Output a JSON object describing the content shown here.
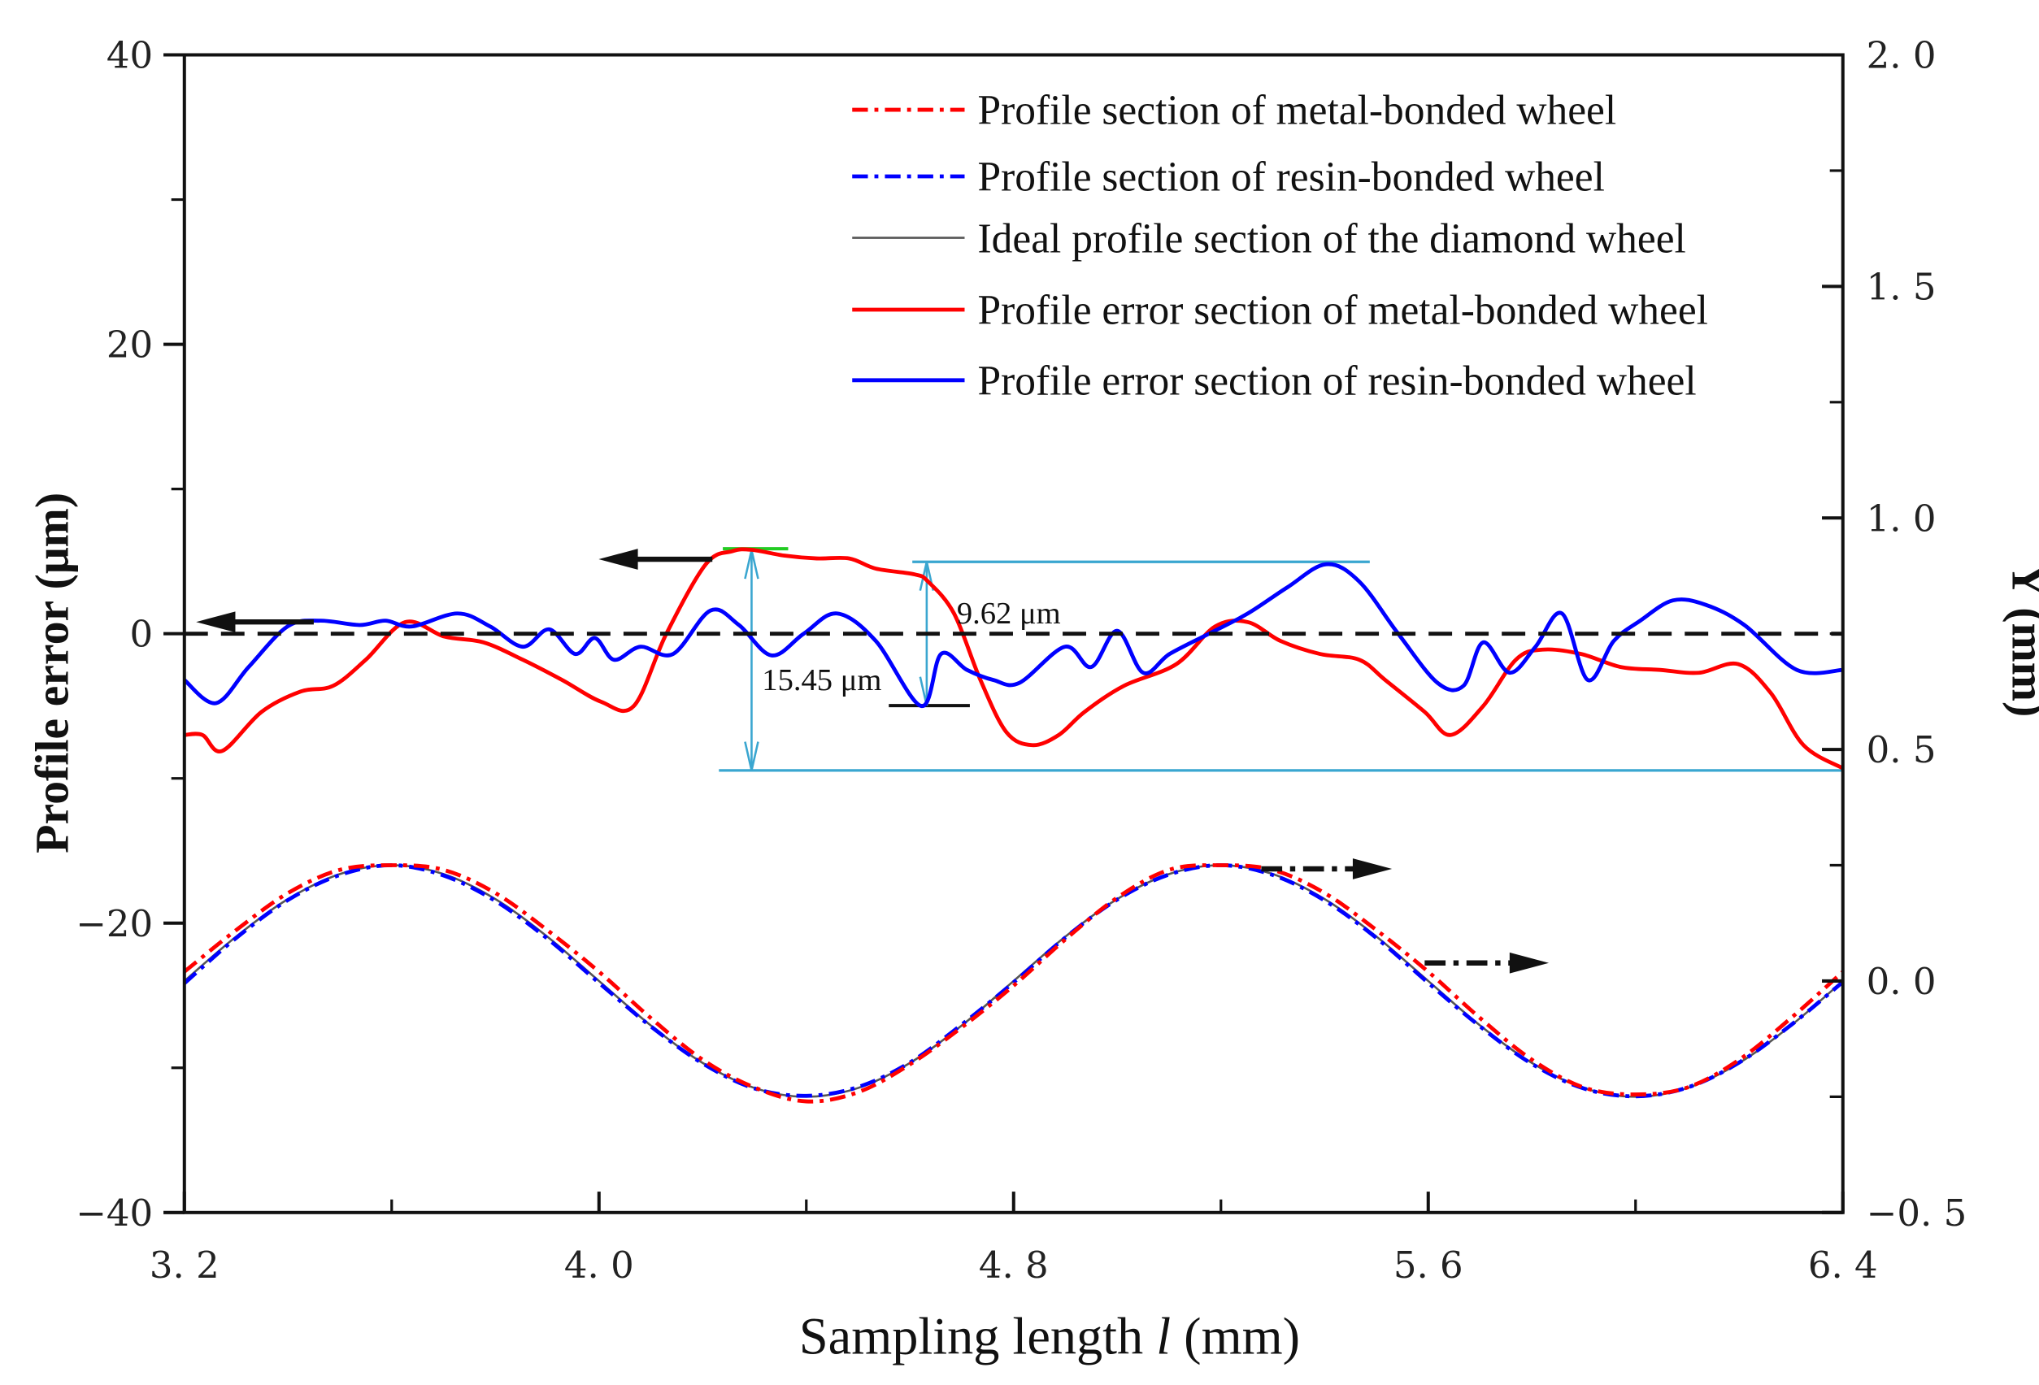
{
  "chart_data": {
    "type": "line",
    "title": "",
    "xlabel_main": "Sampling length ",
    "xlabel_italic": "l",
    "xlabel_unit": " (mm)",
    "ylabel": "Profile error (μm)",
    "y2label": "Y (mm)",
    "xlim": [
      3.2,
      6.4
    ],
    "ylim": [
      -40,
      40
    ],
    "y2lim": [
      -0.5,
      2.0
    ],
    "grid": false,
    "legend_position": "top-right",
    "x_ticks": [
      "3. 2",
      "4. 0",
      "4. 8",
      "5. 6",
      "6. 4"
    ],
    "x_tick_values": [
      3.2,
      4.0,
      4.8,
      5.6,
      6.4
    ],
    "y_ticks": [
      "40",
      "20",
      "0",
      "−20",
      "−40"
    ],
    "y_tick_values": [
      40,
      20,
      0,
      -20,
      -40
    ],
    "y2_ticks": [
      "2. 0",
      "1. 5",
      "1. 0",
      "0. 5",
      "0. 0",
      "−0. 5"
    ],
    "y2_tick_values": [
      2.0,
      1.5,
      1.0,
      0.5,
      0.0,
      -0.5
    ],
    "colors": {
      "metal": "#ff0000",
      "resin": "#0000ff",
      "ideal": "#555555",
      "annotation": "#3aa6d0",
      "peak_marker": "#22cc22"
    },
    "series": [
      {
        "name": "Profile section of metal-bonded wheel",
        "axis": "right",
        "style": "dashdot",
        "color": "#ff0000",
        "x": [
          3.2,
          3.3,
          3.4,
          3.5,
          3.6,
          3.7,
          3.8,
          3.9,
          4.0,
          4.1,
          4.2,
          4.3,
          4.4,
          4.5,
          4.6,
          4.7,
          4.8,
          4.9,
          5.0,
          5.1,
          5.2,
          5.3,
          5.4,
          5.5,
          5.6,
          5.7,
          5.8,
          5.9,
          6.0,
          6.1,
          6.2,
          6.3,
          6.4
        ],
        "y": [
          0.02,
          0.11,
          0.19,
          0.24,
          0.25,
          0.24,
          0.19,
          0.11,
          0.02,
          -0.08,
          -0.17,
          -0.23,
          -0.26,
          -0.24,
          -0.18,
          -0.1,
          -0.01,
          0.09,
          0.18,
          0.24,
          0.25,
          0.24,
          0.19,
          0.11,
          0.02,
          -0.08,
          -0.17,
          -0.23,
          -0.245,
          -0.23,
          -0.17,
          -0.08,
          0.02
        ]
      },
      {
        "name": "Profile section of resin-bonded wheel",
        "axis": "right",
        "style": "dashdot",
        "color": "#0000ff",
        "x": [
          3.2,
          3.3,
          3.4,
          3.5,
          3.6,
          3.7,
          3.8,
          3.9,
          4.0,
          4.1,
          4.2,
          4.3,
          4.4,
          4.5,
          4.6,
          4.7,
          4.8,
          4.9,
          5.0,
          5.1,
          5.2,
          5.3,
          5.4,
          5.5,
          5.6,
          5.7,
          5.8,
          5.9,
          6.0,
          6.1,
          6.2,
          6.3,
          6.4
        ],
        "y": [
          -0.005,
          0.093,
          0.175,
          0.229,
          0.25,
          0.228,
          0.173,
          0.092,
          -0.004,
          -0.098,
          -0.178,
          -0.232,
          -0.248,
          -0.229,
          -0.176,
          -0.094,
          -0.003,
          0.094,
          0.176,
          0.23,
          0.25,
          0.229,
          0.174,
          0.093,
          -0.004,
          -0.098,
          -0.179,
          -0.232,
          -0.249,
          -0.23,
          -0.176,
          -0.095,
          -0.002
        ]
      },
      {
        "name": "Ideal profile section of the diamond wheel",
        "axis": "right",
        "style": "solid-thin",
        "color": "#555555",
        "x": [
          3.2,
          3.3,
          3.4,
          3.5,
          3.6,
          3.7,
          3.8,
          3.9,
          4.0,
          4.1,
          4.2,
          4.3,
          4.4,
          4.5,
          4.6,
          4.7,
          4.8,
          4.9,
          5.0,
          5.1,
          5.2,
          5.3,
          5.4,
          5.5,
          5.6,
          5.7,
          5.8,
          5.9,
          6.0,
          6.1,
          6.2,
          6.3,
          6.4
        ],
        "y": [
          0,
          0.096,
          0.177,
          0.231,
          0.25,
          0.231,
          0.177,
          0.096,
          0,
          -0.096,
          -0.177,
          -0.231,
          -0.25,
          -0.231,
          -0.177,
          -0.096,
          0,
          0.096,
          0.177,
          0.231,
          0.25,
          0.231,
          0.177,
          0.096,
          0,
          -0.096,
          -0.177,
          -0.231,
          -0.25,
          -0.231,
          -0.177,
          -0.096,
          0
        ]
      },
      {
        "name": "Profile error section of metal-bonded wheel",
        "axis": "left",
        "style": "solid",
        "color": "#ff0000",
        "x": [
          3.2,
          3.235,
          3.273,
          3.349,
          3.424,
          3.487,
          3.55,
          3.626,
          3.702,
          3.777,
          3.853,
          3.929,
          4.004,
          4.067,
          4.13,
          4.206,
          4.257,
          4.294,
          4.357,
          4.42,
          4.483,
          4.534,
          4.609,
          4.635,
          4.685,
          4.736,
          4.786,
          4.836,
          4.887,
          4.937,
          5.013,
          5.114,
          5.189,
          5.252,
          5.315,
          5.391,
          5.467,
          5.517,
          5.593,
          5.643,
          5.706,
          5.769,
          5.82,
          5.895,
          5.971,
          6.047,
          6.122,
          6.198,
          6.261,
          6.324,
          6.4
        ],
        "y": [
          -7.0,
          -7.0,
          -8.1,
          -5.4,
          -4.0,
          -3.6,
          -1.8,
          0.8,
          -0.2,
          -0.6,
          -1.8,
          -3.2,
          -4.7,
          -5.0,
          0,
          4.8,
          5.7,
          5.8,
          5.4,
          5.2,
          5.2,
          4.5,
          4.1,
          3.6,
          1.4,
          -3.2,
          -6.8,
          -7.7,
          -7.0,
          -5.4,
          -3.6,
          -2.1,
          0.5,
          0.8,
          -0.5,
          -1.4,
          -1.8,
          -3.2,
          -5.4,
          -7.0,
          -5.0,
          -1.8,
          -1.1,
          -1.4,
          -2.3,
          -2.5,
          -2.7,
          -2.1,
          -4.1,
          -7.7,
          -9.3
        ]
      },
      {
        "name": "Profile error section of resin-bonded wheel",
        "axis": "left",
        "style": "solid",
        "color": "#0000ff",
        "x": [
          3.2,
          3.261,
          3.324,
          3.399,
          3.462,
          3.538,
          3.588,
          3.639,
          3.727,
          3.79,
          3.853,
          3.904,
          3.954,
          3.992,
          4.029,
          4.08,
          4.143,
          4.215,
          4.27,
          4.333,
          4.395,
          4.459,
          4.534,
          4.622,
          4.66,
          4.71,
          4.761,
          4.811,
          4.899,
          4.95,
          5.0,
          5.05,
          5.101,
          5.177,
          5.252,
          5.328,
          5.403,
          5.467,
          5.542,
          5.618,
          5.668,
          5.706,
          5.757,
          5.807,
          5.858,
          5.908,
          5.958,
          6.009,
          6.072,
          6.135,
          6.21,
          6.311,
          6.4
        ],
        "y": [
          -3.2,
          -4.8,
          -2.3,
          0.5,
          0.9,
          0.6,
          0.9,
          0.5,
          1.4,
          0.5,
          -0.9,
          0.3,
          -1.4,
          -0.3,
          -1.8,
          -0.9,
          -1.4,
          1.6,
          0.6,
          -1.5,
          0,
          1.4,
          -0.5,
          -5.0,
          -1.4,
          -2.5,
          -3.2,
          -3.4,
          -0.9,
          -2.3,
          0.2,
          -2.7,
          -1.4,
          0,
          1.4,
          3.2,
          4.8,
          3.6,
          0,
          -3.4,
          -3.6,
          -0.6,
          -2.7,
          -0.9,
          1.4,
          -3.2,
          -0.5,
          0.9,
          2.3,
          2.0,
          0.6,
          -2.5,
          -2.5
        ]
      }
    ],
    "annotations": [
      {
        "label": "15.45 μm",
        "type": "double-arrow",
        "from": 5.8,
        "to": -9.45,
        "x": 4.3
      },
      {
        "label": "9.62 μm",
        "type": "double-arrow",
        "from": 4.9,
        "to": -4.8,
        "x": 4.64
      }
    ],
    "reference_line": {
      "y": 0,
      "style": "dashed"
    }
  }
}
